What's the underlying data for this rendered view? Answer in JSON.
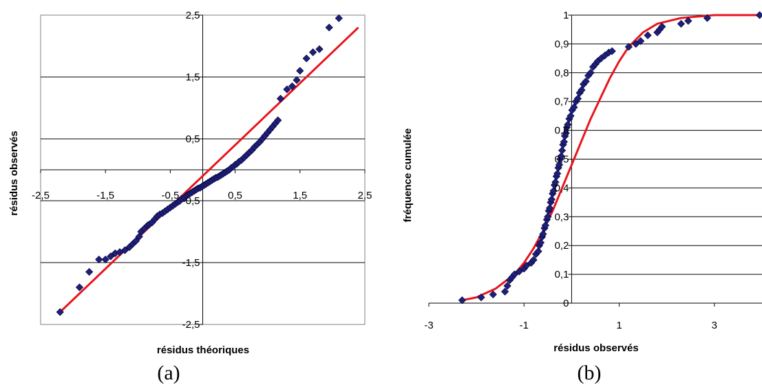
{
  "chart_data": [
    {
      "type": "scatter",
      "panel_caption": "(a)",
      "xlabel": "résidus théoriques",
      "ylabel": "résidus observés",
      "xlim": [
        -2.5,
        2.5
      ],
      "ylim": [
        -2.5,
        2.5
      ],
      "x_ticks": [
        "-2,5",
        "-1,5",
        "-0,5",
        "0,5",
        "1,5",
        "2,5"
      ],
      "y_ticks": [
        "-2,5",
        "-1,5",
        "-0,5",
        "0,5",
        "1,5",
        "2,5"
      ],
      "x_tick_values": [
        -2.5,
        -1.5,
        -0.5,
        0.5,
        1.5,
        2.5
      ],
      "y_tick_values": [
        -2.5,
        -1.5,
        -0.5,
        0.5,
        1.5,
        2.5
      ],
      "grid": "horizontal",
      "colors": {
        "points": "#1f1f7a",
        "line": "#e8141c"
      },
      "series": [
        {
          "kind": "points",
          "points": [
            [
              -2.2,
              -2.3
            ],
            [
              -1.9,
              -1.9
            ],
            [
              -1.75,
              -1.65
            ],
            [
              -1.6,
              -1.45
            ],
            [
              -1.5,
              -1.45
            ],
            [
              -1.42,
              -1.4
            ],
            [
              -1.35,
              -1.35
            ],
            [
              -1.28,
              -1.33
            ],
            [
              -1.2,
              -1.3
            ],
            [
              -1.13,
              -1.25
            ],
            [
              -1.08,
              -1.2
            ],
            [
              -1.03,
              -1.15
            ],
            [
              -0.98,
              -1.08
            ],
            [
              -0.95,
              -1.0
            ],
            [
              -0.9,
              -0.95
            ],
            [
              -0.85,
              -0.9
            ],
            [
              -0.82,
              -0.88
            ],
            [
              -0.78,
              -0.85
            ],
            [
              -0.74,
              -0.8
            ],
            [
              -0.7,
              -0.75
            ],
            [
              -0.66,
              -0.72
            ],
            [
              -0.62,
              -0.7
            ],
            [
              -0.58,
              -0.67
            ],
            [
              -0.54,
              -0.64
            ],
            [
              -0.5,
              -0.61
            ],
            [
              -0.46,
              -0.58
            ],
            [
              -0.42,
              -0.55
            ],
            [
              -0.38,
              -0.52
            ],
            [
              -0.35,
              -0.5
            ],
            [
              -0.32,
              -0.47
            ],
            [
              -0.28,
              -0.45
            ],
            [
              -0.25,
              -0.42
            ],
            [
              -0.22,
              -0.4
            ],
            [
              -0.19,
              -0.38
            ],
            [
              -0.16,
              -0.36
            ],
            [
              -0.13,
              -0.34
            ],
            [
              -0.1,
              -0.32
            ],
            [
              -0.07,
              -0.3
            ],
            [
              -0.04,
              -0.29
            ],
            [
              -0.01,
              -0.27
            ],
            [
              0.02,
              -0.25
            ],
            [
              0.05,
              -0.23
            ],
            [
              0.08,
              -0.21
            ],
            [
              0.11,
              -0.19
            ],
            [
              0.14,
              -0.17
            ],
            [
              0.17,
              -0.15
            ],
            [
              0.2,
              -0.13
            ],
            [
              0.23,
              -0.12
            ],
            [
              0.26,
              -0.1
            ],
            [
              0.29,
              -0.08
            ],
            [
              0.32,
              -0.06
            ],
            [
              0.35,
              -0.04
            ],
            [
              0.38,
              -0.02
            ],
            [
              0.41,
              0.0
            ],
            [
              0.44,
              0.03
            ],
            [
              0.47,
              0.05
            ],
            [
              0.5,
              0.08
            ],
            [
              0.53,
              0.1
            ],
            [
              0.56,
              0.13
            ],
            [
              0.6,
              0.16
            ],
            [
              0.64,
              0.2
            ],
            [
              0.68,
              0.24
            ],
            [
              0.72,
              0.28
            ],
            [
              0.76,
              0.32
            ],
            [
              0.8,
              0.37
            ],
            [
              0.84,
              0.41
            ],
            [
              0.88,
              0.45
            ],
            [
              0.92,
              0.5
            ],
            [
              0.96,
              0.55
            ],
            [
              1.0,
              0.6
            ],
            [
              1.04,
              0.65
            ],
            [
              1.08,
              0.7
            ],
            [
              1.12,
              0.75
            ],
            [
              1.16,
              0.8
            ],
            [
              1.2,
              1.15
            ],
            [
              1.3,
              1.3
            ],
            [
              1.38,
              1.35
            ],
            [
              1.45,
              1.45
            ],
            [
              1.5,
              1.6
            ],
            [
              1.6,
              1.8
            ],
            [
              1.7,
              1.9
            ],
            [
              1.8,
              1.95
            ],
            [
              1.95,
              2.3
            ],
            [
              2.1,
              2.45
            ]
          ]
        },
        {
          "kind": "line",
          "points": [
            [
              -2.2,
              -2.3
            ],
            [
              2.4,
              2.3
            ]
          ]
        }
      ]
    },
    {
      "type": "scatter",
      "panel_caption": "(b)",
      "xlabel": "résidus observés",
      "ylabel": "fréquence cumulée",
      "xlim": [
        -3,
        4
      ],
      "ylim": [
        0,
        1
      ],
      "x_ticks": [
        "-3",
        "-1",
        "1",
        "3"
      ],
      "y_ticks": [
        "0",
        "0,1",
        "0,2",
        "0,3",
        "0,4",
        "0,5",
        "0,6",
        "0,7",
        "0,8",
        "0,9",
        "1"
      ],
      "x_tick_values": [
        -3,
        -1,
        1,
        3
      ],
      "y_tick_values": [
        0,
        0.1,
        0.2,
        0.3,
        0.4,
        0.5,
        0.6,
        0.7,
        0.8,
        0.9,
        1
      ],
      "grid": "horizontal",
      "colors": {
        "points": "#1f1f7a",
        "line": "#e8141c"
      },
      "series": [
        {
          "kind": "points",
          "points": [
            [
              -2.3,
              0.01
            ],
            [
              -1.9,
              0.02
            ],
            [
              -1.65,
              0.03
            ],
            [
              -1.4,
              0.04
            ],
            [
              -1.35,
              0.06
            ],
            [
              -1.3,
              0.08
            ],
            [
              -1.25,
              0.09
            ],
            [
              -1.2,
              0.1
            ],
            [
              -1.1,
              0.11
            ],
            [
              -1.0,
              0.12
            ],
            [
              -0.95,
              0.13
            ],
            [
              -0.85,
              0.14
            ],
            [
              -0.8,
              0.15
            ],
            [
              -0.75,
              0.17
            ],
            [
              -0.7,
              0.18
            ],
            [
              -0.68,
              0.2
            ],
            [
              -0.65,
              0.21
            ],
            [
              -0.62,
              0.23
            ],
            [
              -0.6,
              0.24
            ],
            [
              -0.57,
              0.26
            ],
            [
              -0.55,
              0.27
            ],
            [
              -0.52,
              0.29
            ],
            [
              -0.5,
              0.3
            ],
            [
              -0.48,
              0.32
            ],
            [
              -0.46,
              0.33
            ],
            [
              -0.44,
              0.35
            ],
            [
              -0.42,
              0.36
            ],
            [
              -0.4,
              0.38
            ],
            [
              -0.38,
              0.39
            ],
            [
              -0.36,
              0.41
            ],
            [
              -0.34,
              0.42
            ],
            [
              -0.32,
              0.44
            ],
            [
              -0.3,
              0.45
            ],
            [
              -0.28,
              0.47
            ],
            [
              -0.26,
              0.48
            ],
            [
              -0.24,
              0.5
            ],
            [
              -0.22,
              0.51
            ],
            [
              -0.2,
              0.53
            ],
            [
              -0.18,
              0.55
            ],
            [
              -0.16,
              0.56
            ],
            [
              -0.14,
              0.58
            ],
            [
              -0.12,
              0.59
            ],
            [
              -0.1,
              0.61
            ],
            [
              -0.08,
              0.62
            ],
            [
              -0.05,
              0.64
            ],
            [
              -0.02,
              0.65
            ],
            [
              0.01,
              0.67
            ],
            [
              0.05,
              0.68
            ],
            [
              0.09,
              0.7
            ],
            [
              0.13,
              0.71
            ],
            [
              0.17,
              0.73
            ],
            [
              0.21,
              0.74
            ],
            [
              0.25,
              0.76
            ],
            [
              0.3,
              0.77
            ],
            [
              0.35,
              0.79
            ],
            [
              0.4,
              0.8
            ],
            [
              0.45,
              0.82
            ],
            [
              0.5,
              0.83
            ],
            [
              0.55,
              0.84
            ],
            [
              0.62,
              0.85
            ],
            [
              0.7,
              0.86
            ],
            [
              0.78,
              0.87
            ],
            [
              0.85,
              0.875
            ],
            [
              1.2,
              0.89
            ],
            [
              1.35,
              0.9
            ],
            [
              1.45,
              0.91
            ],
            [
              1.6,
              0.93
            ],
            [
              1.8,
              0.94
            ],
            [
              1.85,
              0.95
            ],
            [
              1.9,
              0.96
            ],
            [
              2.3,
              0.97
            ],
            [
              2.45,
              0.98
            ],
            [
              2.85,
              0.99
            ],
            [
              3.95,
              1.0
            ]
          ]
        },
        {
          "kind": "line",
          "points": [
            [
              -2.3,
              0.01
            ],
            [
              -2.0,
              0.02
            ],
            [
              -1.6,
              0.05
            ],
            [
              -1.2,
              0.1
            ],
            [
              -1.0,
              0.14
            ],
            [
              -0.8,
              0.19
            ],
            [
              -0.6,
              0.25
            ],
            [
              -0.4,
              0.32
            ],
            [
              -0.2,
              0.4
            ],
            [
              0.0,
              0.48
            ],
            [
              0.2,
              0.56
            ],
            [
              0.4,
              0.64
            ],
            [
              0.6,
              0.71
            ],
            [
              0.8,
              0.78
            ],
            [
              1.0,
              0.84
            ],
            [
              1.2,
              0.89
            ],
            [
              1.5,
              0.94
            ],
            [
              1.8,
              0.97
            ],
            [
              2.3,
              0.99
            ],
            [
              3.0,
              1.0
            ],
            [
              4.0,
              1.0
            ]
          ]
        }
      ]
    }
  ]
}
